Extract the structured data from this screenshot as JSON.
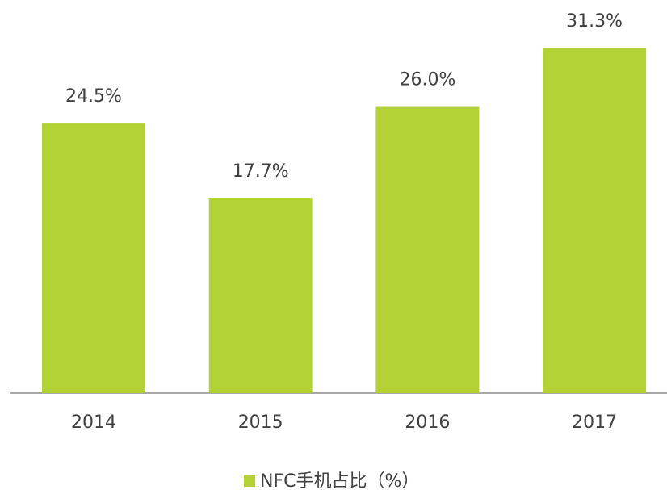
{
  "chart_data": {
    "type": "bar",
    "categories": [
      "2014",
      "2015",
      "2016",
      "2017"
    ],
    "series": [
      {
        "name": "NFC手机占比（%）",
        "color": "#b3d235",
        "values": [
          24.5,
          17.7,
          26.0,
          31.3
        ],
        "value_labels": [
          "24.5%",
          "17.7%",
          "26.0%",
          "31.3%"
        ]
      }
    ]
  }
}
